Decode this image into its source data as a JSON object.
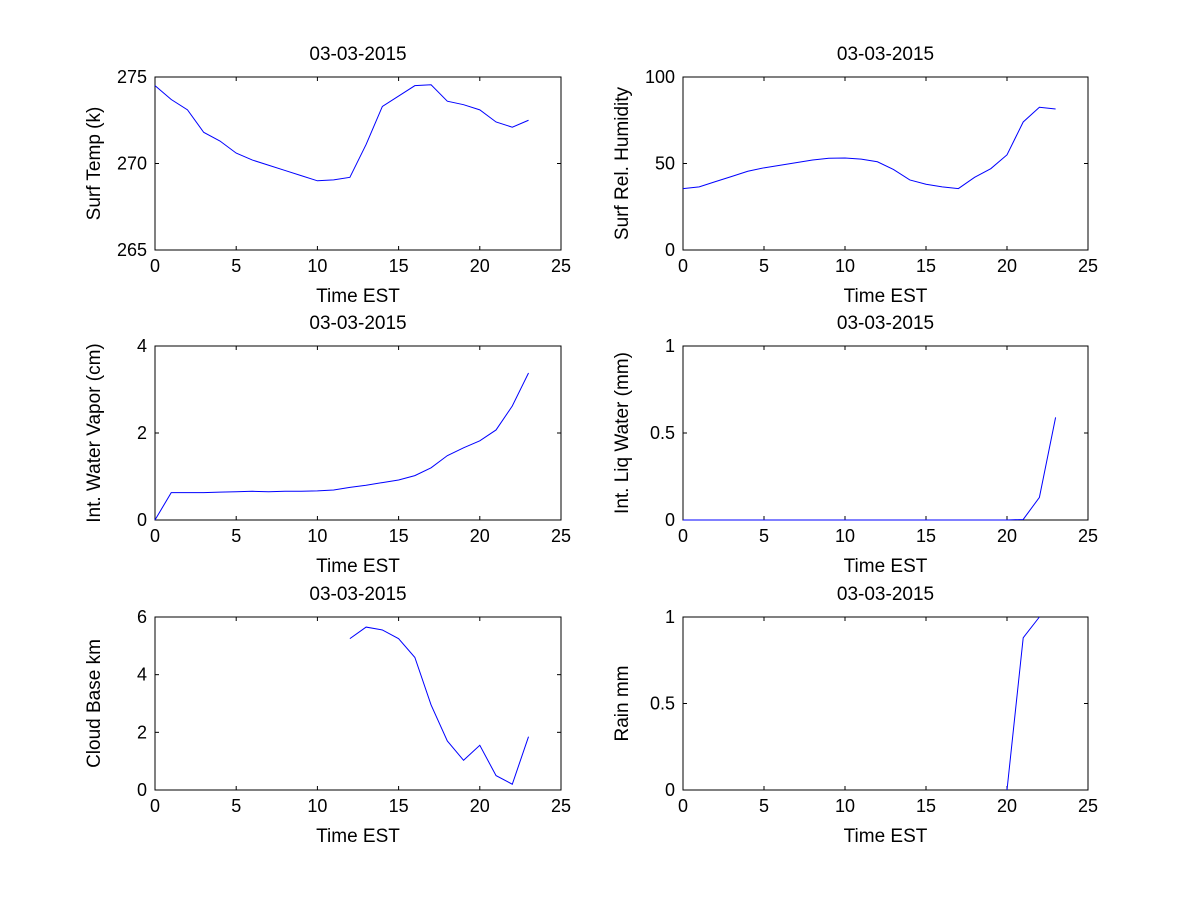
{
  "chart_data": [
    {
      "type": "line",
      "title": "03-03-2015",
      "xlabel": "Time EST",
      "ylabel": "Surf Temp (k)",
      "xlim": [
        0,
        25
      ],
      "ylim": [
        265,
        275
      ],
      "xticks": [
        0,
        5,
        10,
        15,
        20,
        25
      ],
      "yticks": [
        265,
        270,
        275
      ],
      "grid": false,
      "color": "#0000ff",
      "x": [
        0,
        1,
        2,
        3,
        4,
        5,
        6,
        7,
        8,
        9,
        10,
        11,
        12,
        13,
        14,
        15,
        16,
        17,
        18,
        19,
        20,
        21,
        22,
        23
      ],
      "y": [
        274.5,
        273.7,
        273.1,
        271.8,
        271.3,
        270.6,
        270.2,
        269.9,
        269.6,
        269.3,
        269.0,
        269.05,
        269.2,
        271.1,
        273.3,
        273.9,
        274.5,
        274.55,
        273.6,
        273.4,
        273.1,
        272.4,
        272.1,
        272.5
      ]
    },
    {
      "type": "line",
      "title": "03-03-2015",
      "xlabel": "Time EST",
      "ylabel": "Surf Rel. Humidity",
      "xlim": [
        0,
        25
      ],
      "ylim": [
        0,
        100
      ],
      "xticks": [
        0,
        5,
        10,
        15,
        20,
        25
      ],
      "yticks": [
        0,
        50,
        100
      ],
      "grid": false,
      "color": "#0000ff",
      "x": [
        0,
        1,
        2,
        3,
        4,
        5,
        6,
        7,
        8,
        9,
        10,
        11,
        12,
        13,
        14,
        15,
        16,
        17,
        18,
        19,
        20,
        21,
        22,
        23
      ],
      "y": [
        35.5,
        36.5,
        39.5,
        42.5,
        45.5,
        47.5,
        49.0,
        50.5,
        52.0,
        53.0,
        53.2,
        52.5,
        51.0,
        46.5,
        40.5,
        38.0,
        36.5,
        35.5,
        42.0,
        47.0,
        55.0,
        74.0,
        82.5,
        81.5
      ]
    },
    {
      "type": "line",
      "title": "03-03-2015",
      "xlabel": "Time EST",
      "ylabel": "Int. Water Vapor (cm)",
      "xlim": [
        0,
        25
      ],
      "ylim": [
        0,
        4
      ],
      "xticks": [
        0,
        5,
        10,
        15,
        20,
        25
      ],
      "yticks": [
        0,
        2,
        4
      ],
      "grid": false,
      "color": "#0000ff",
      "x": [
        0,
        1,
        2,
        3,
        4,
        5,
        6,
        7,
        8,
        9,
        10,
        11,
        12,
        13,
        14,
        15,
        16,
        17,
        18,
        19,
        20,
        21,
        22,
        23
      ],
      "y": [
        0.0,
        0.63,
        0.63,
        0.63,
        0.64,
        0.65,
        0.66,
        0.65,
        0.66,
        0.66,
        0.67,
        0.69,
        0.75,
        0.8,
        0.86,
        0.92,
        1.02,
        1.2,
        1.48,
        1.66,
        1.82,
        2.07,
        2.62,
        3.38
      ]
    },
    {
      "type": "line",
      "title": "03-03-2015",
      "xlabel": "Time EST",
      "ylabel": "Int. Liq Water (mm)",
      "xlim": [
        0,
        25
      ],
      "ylim": [
        0,
        1
      ],
      "xticks": [
        0,
        5,
        10,
        15,
        20,
        25
      ],
      "yticks": [
        0,
        0.5,
        1
      ],
      "grid": false,
      "color": "#0000ff",
      "x": [
        0,
        1,
        2,
        3,
        4,
        5,
        6,
        7,
        8,
        9,
        10,
        11,
        12,
        13,
        14,
        15,
        16,
        17,
        18,
        19,
        20,
        21,
        22,
        23
      ],
      "y": [
        0,
        0,
        0,
        0,
        0,
        0,
        0,
        0,
        0,
        0,
        0,
        0,
        0,
        0,
        0,
        0,
        0,
        0,
        0,
        0,
        0,
        0.003,
        0.13,
        0.59
      ]
    },
    {
      "type": "line",
      "title": "03-03-2015",
      "xlabel": "Time EST",
      "ylabel": "Cloud Base km",
      "xlim": [
        0,
        25
      ],
      "ylim": [
        0,
        6
      ],
      "xticks": [
        0,
        5,
        10,
        15,
        20,
        25
      ],
      "yticks": [
        0,
        2,
        4,
        6
      ],
      "grid": false,
      "color": "#0000ff",
      "x": [
        12,
        13,
        14,
        15,
        16,
        17,
        18,
        19,
        20,
        21,
        22,
        23
      ],
      "y": [
        5.25,
        5.65,
        5.55,
        5.25,
        4.6,
        2.95,
        1.7,
        1.03,
        1.55,
        0.5,
        0.2,
        1.85
      ]
    },
    {
      "type": "line",
      "title": "03-03-2015",
      "xlabel": "Time EST",
      "ylabel": "Rain mm",
      "xlim": [
        0,
        25
      ],
      "ylim": [
        0,
        1
      ],
      "xticks": [
        0,
        5,
        10,
        15,
        20,
        25
      ],
      "yticks": [
        0,
        0.5,
        1
      ],
      "grid": false,
      "color": "#0000ff",
      "x": [
        20,
        21,
        22
      ],
      "y": [
        0.0,
        0.88,
        1.0
      ]
    }
  ]
}
